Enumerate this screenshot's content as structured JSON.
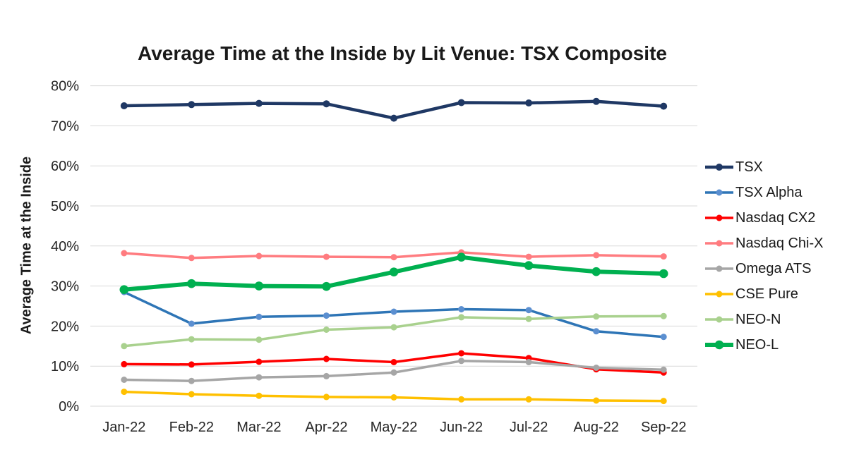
{
  "title": "Average Time at the Inside by Lit Venue: TSX Composite",
  "y_axis_title": "Average Time at the Inside",
  "colors": {
    "background": "#FFFFFF",
    "gridline": "#D9D9D9",
    "tick_text": "#262626",
    "title_text": "#1A1A1A"
  },
  "chart_data": {
    "type": "line",
    "title": "Average Time at the Inside by Lit Venue: TSX Composite",
    "xlabel": "",
    "ylabel": "Average Time at the Inside",
    "x": [
      "Jan-22",
      "Feb-22",
      "Mar-22",
      "Apr-22",
      "May-22",
      "Jun-22",
      "Jul-22",
      "Aug-22",
      "Sep-22"
    ],
    "ylim": [
      0,
      80
    ],
    "ytick_labels": [
      "0%",
      "10%",
      "20%",
      "30%",
      "40%",
      "50%",
      "60%",
      "70%",
      "80%"
    ],
    "grid": true,
    "legend_position": "right",
    "series": [
      {
        "name": "TSX",
        "color": "#1F3864",
        "line_width": 4.5,
        "marker_radius": 5,
        "values": [
          75.0,
          75.3,
          75.6,
          75.5,
          71.9,
          75.8,
          75.7,
          76.1,
          74.9
        ]
      },
      {
        "name": "TSX Alpha",
        "color": "#2E75B6",
        "marker_color": "#5B8FD0",
        "line_width": 3.5,
        "marker_radius": 4.5,
        "values": [
          28.5,
          20.6,
          22.3,
          22.6,
          23.6,
          24.2,
          24.0,
          18.7,
          17.3
        ]
      },
      {
        "name": "Nasdaq CX2",
        "color": "#FF0000",
        "line_width": 3.5,
        "marker_radius": 4.5,
        "values": [
          10.5,
          10.4,
          11.1,
          11.8,
          11.0,
          13.2,
          12.0,
          9.2,
          8.4
        ]
      },
      {
        "name": "Nasdaq Chi-X",
        "color": "#FF7C80",
        "line_width": 3.5,
        "marker_radius": 4.5,
        "values": [
          38.2,
          37.0,
          37.5,
          37.3,
          37.2,
          38.4,
          37.3,
          37.7,
          37.4
        ]
      },
      {
        "name": "Omega ATS",
        "color": "#A6A6A6",
        "line_width": 3.5,
        "marker_radius": 4.5,
        "values": [
          6.6,
          6.3,
          7.2,
          7.5,
          8.4,
          11.3,
          11.0,
          9.6,
          9.1
        ]
      },
      {
        "name": "CSE Pure",
        "color": "#FFC000",
        "line_width": 3.5,
        "marker_radius": 4.5,
        "values": [
          3.6,
          3.0,
          2.6,
          2.3,
          2.2,
          1.7,
          1.7,
          1.4,
          1.3
        ]
      },
      {
        "name": "NEO-N",
        "color": "#A9D18E",
        "line_width": 3.5,
        "marker_radius": 4.5,
        "values": [
          15.0,
          16.7,
          16.6,
          19.1,
          19.7,
          22.2,
          21.8,
          22.4,
          22.5
        ]
      },
      {
        "name": "NEO-L",
        "color": "#00B050",
        "line_width": 6,
        "marker_radius": 6.3,
        "values": [
          29.1,
          30.6,
          30.0,
          29.9,
          33.5,
          37.2,
          35.1,
          33.6,
          33.1
        ]
      }
    ]
  }
}
